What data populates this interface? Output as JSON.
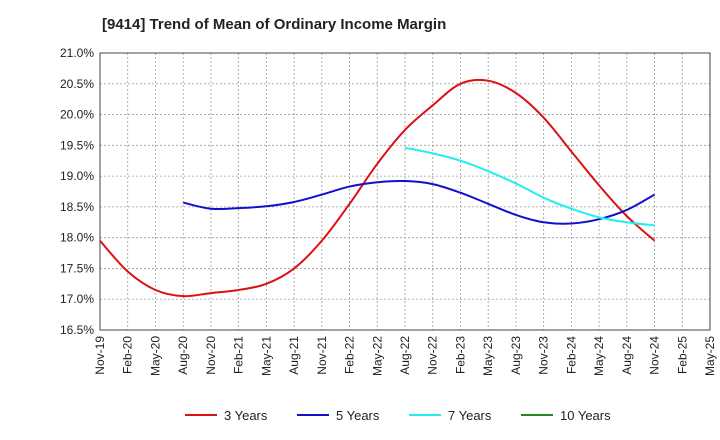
{
  "chart_data": {
    "type": "line",
    "title": "[9414]  Trend of Mean of Ordinary Income Margin",
    "xlabel": "",
    "ylabel": "",
    "x": [
      "Nov-19",
      "Feb-20",
      "May-20",
      "Aug-20",
      "Nov-20",
      "Feb-21",
      "May-21",
      "Aug-21",
      "Nov-21",
      "Feb-22",
      "May-22",
      "Aug-22",
      "Nov-22",
      "Feb-23",
      "May-23",
      "Aug-23",
      "Nov-23",
      "Feb-24",
      "May-24",
      "Aug-24",
      "Nov-24",
      "Feb-25",
      "May-25"
    ],
    "ylim": [
      16.5,
      21.0
    ],
    "yticks": [
      "16.5%",
      "17.0%",
      "17.5%",
      "18.0%",
      "18.5%",
      "19.0%",
      "19.5%",
      "20.0%",
      "20.5%",
      "21.0%"
    ],
    "grid": true,
    "legend_position": "bottom",
    "series": [
      {
        "name": "3 Years",
        "color": "#dd1111",
        "values": [
          17.95,
          17.45,
          17.15,
          17.05,
          17.1,
          17.15,
          17.25,
          17.5,
          17.95,
          18.55,
          19.2,
          19.75,
          20.15,
          20.5,
          20.55,
          20.35,
          19.95,
          19.4,
          18.85,
          18.35,
          17.95,
          null,
          null
        ]
      },
      {
        "name": "5 Years",
        "color": "#1111cc",
        "values": [
          null,
          null,
          null,
          18.57,
          18.47,
          18.48,
          18.51,
          18.58,
          18.7,
          18.83,
          18.9,
          18.92,
          18.87,
          18.73,
          18.55,
          18.37,
          18.25,
          18.23,
          18.3,
          18.45,
          18.7,
          null,
          null
        ]
      },
      {
        "name": "7 Years",
        "color": "#22eeee",
        "values": [
          null,
          null,
          null,
          null,
          null,
          null,
          null,
          null,
          null,
          null,
          null,
          19.46,
          19.37,
          19.25,
          19.08,
          18.88,
          18.65,
          18.47,
          18.33,
          18.25,
          18.2,
          null,
          null
        ]
      },
      {
        "name": "10 Years",
        "color": "#228822",
        "values": [
          null,
          null,
          null,
          null,
          null,
          null,
          null,
          null,
          null,
          null,
          null,
          null,
          null,
          null,
          null,
          null,
          null,
          null,
          null,
          null,
          null,
          null,
          null
        ]
      }
    ]
  }
}
